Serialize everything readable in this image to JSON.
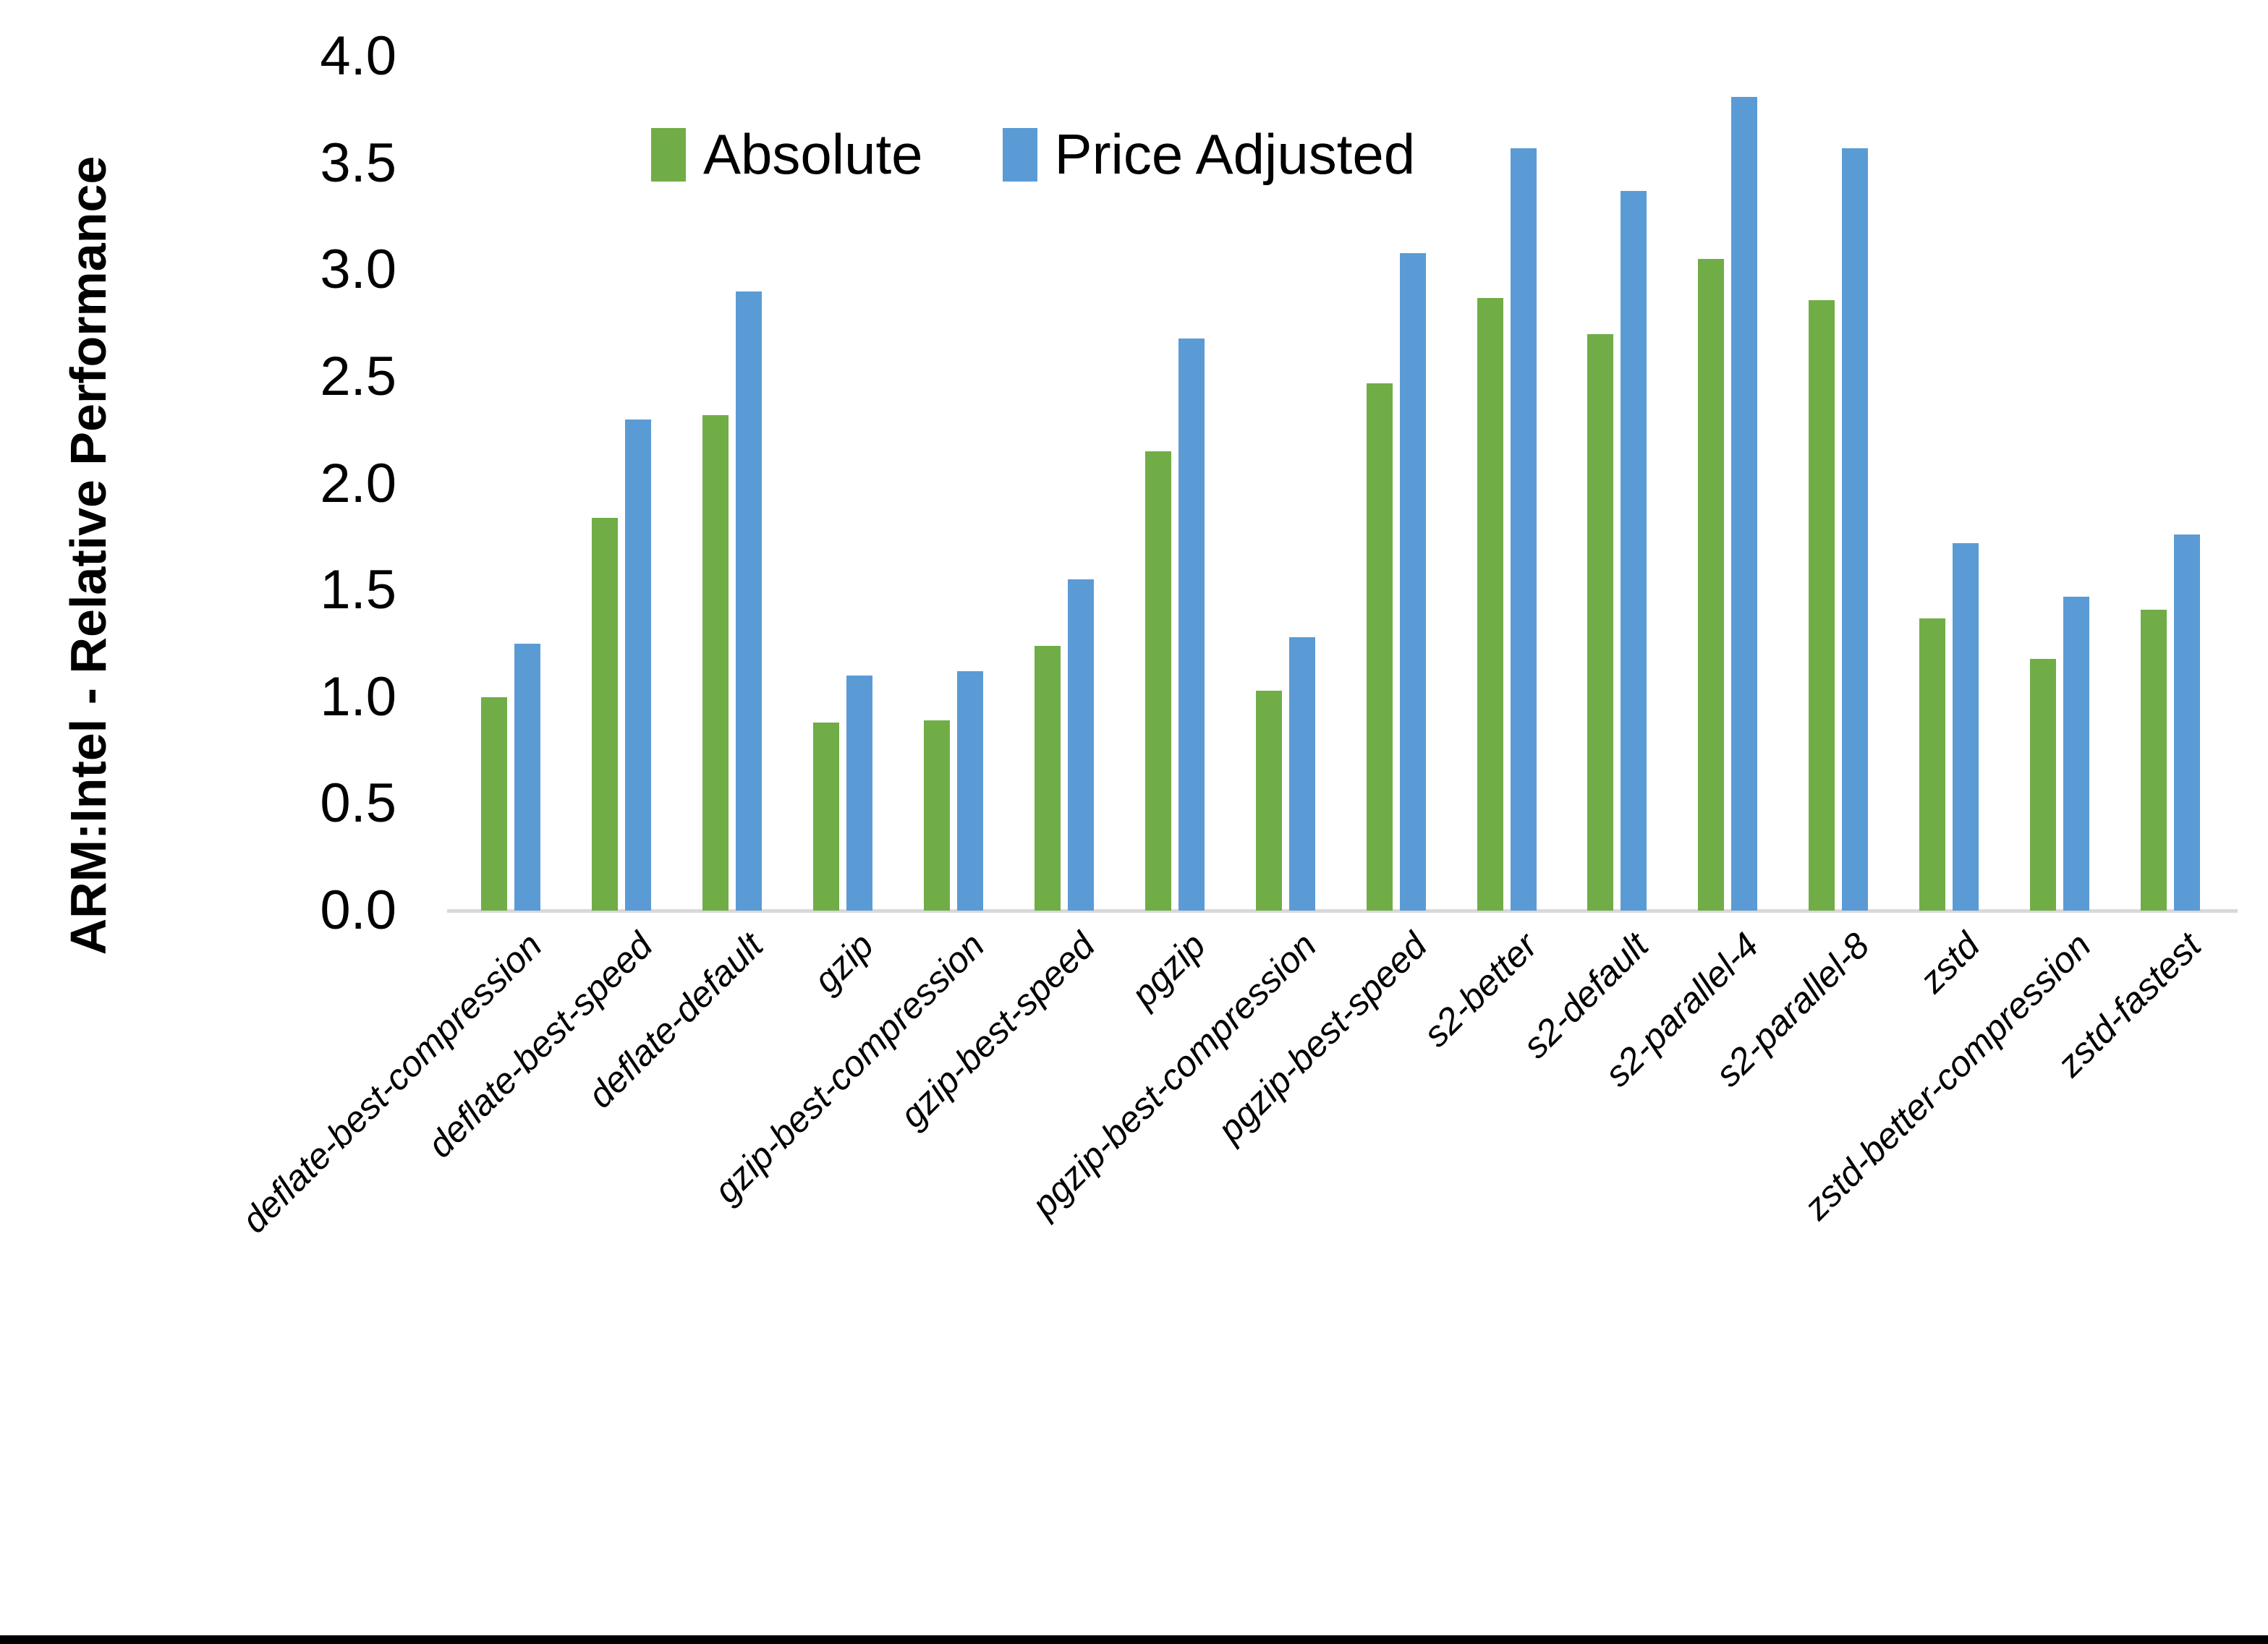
{
  "chart_data": {
    "type": "bar",
    "title": "",
    "xlabel": "",
    "ylabel": "ARM:Intel - Relative Performance",
    "ylim": [
      0.0,
      4.0
    ],
    "ytick_labels": [
      "4.0",
      "3.5",
      "3.0",
      "2.5",
      "2.0",
      "1.5",
      "1.0",
      "0.5",
      "0.0"
    ],
    "grid": false,
    "legend_position": "top-center",
    "categories": [
      "deflate-best-compression",
      "deflate-best-speed",
      "deflate-default",
      "gzip",
      "gzip-best-compression",
      "gzip-best-speed",
      "pgzip",
      "pgzip-best-compression",
      "pgzip-best-speed",
      "s2-better",
      "s2-default",
      "s2-parallel-4",
      "s2-parallel-8",
      "zstd",
      "zstd-better-compression",
      "zstd-fastest"
    ],
    "series": [
      {
        "name": "Absolute",
        "color": "#70AD47",
        "values": [
          1.0,
          1.84,
          2.32,
          0.88,
          0.89,
          1.24,
          2.15,
          1.03,
          2.47,
          2.87,
          2.7,
          3.05,
          2.86,
          1.37,
          1.18,
          1.41
        ]
      },
      {
        "name": "Price Adjusted",
        "color": "#5B9BD5",
        "values": [
          1.25,
          2.3,
          2.9,
          1.1,
          1.12,
          1.55,
          2.68,
          1.28,
          3.08,
          3.57,
          3.37,
          3.81,
          3.57,
          1.72,
          1.47,
          1.76
        ]
      }
    ]
  },
  "colors": {
    "axis_line": "#D9D9D9",
    "text": "#000000",
    "background": "#FFFFFF",
    "bottom_border": "#000000"
  }
}
